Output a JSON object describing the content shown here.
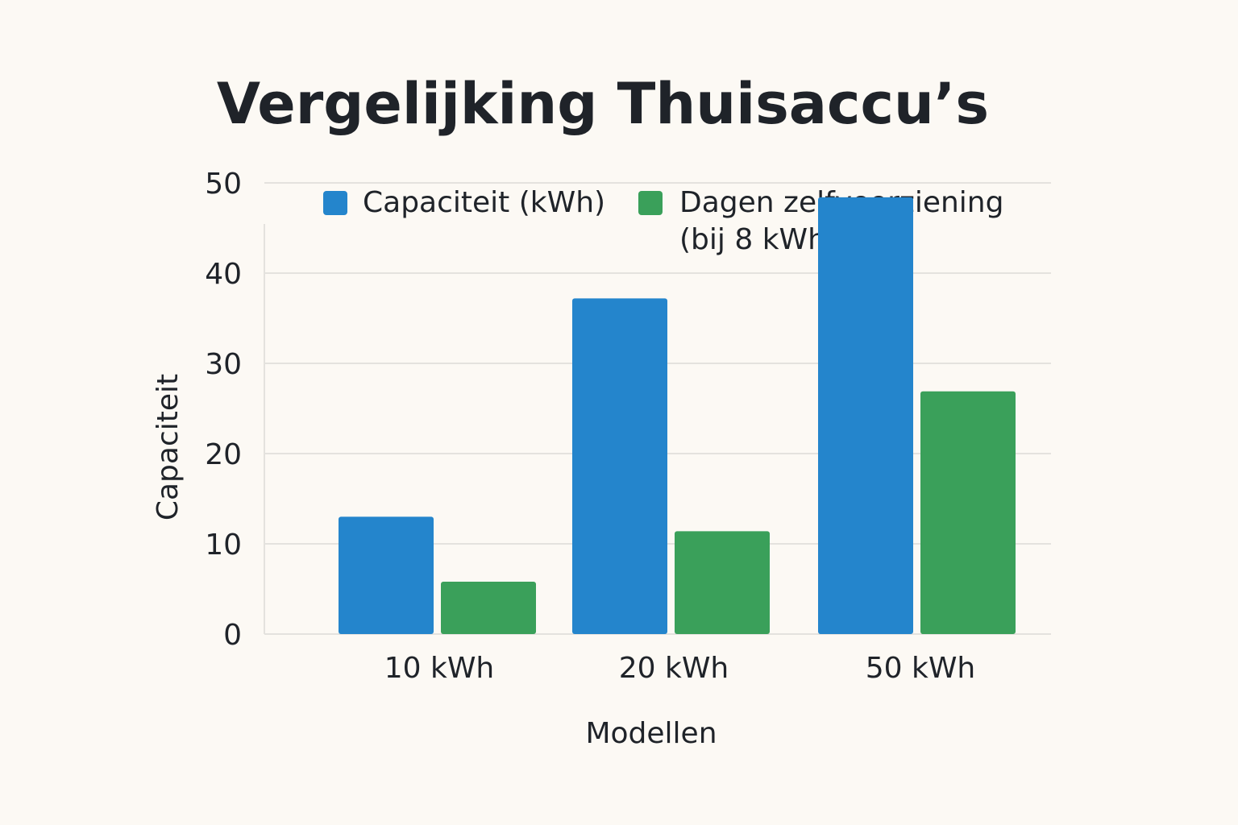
{
  "chart_data": {
    "type": "bar",
    "title": "Vergelijking Thuisaccu’s",
    "xlabel": "Modellen",
    "ylabel": "Capaciteit",
    "categories": [
      "10 kWh",
      "20 kWh",
      "50 kWh"
    ],
    "series": [
      {
        "name": "Capaciteit (kWh)",
        "values": [
          13,
          37.2,
          48.4
        ],
        "color": "#2485cc"
      },
      {
        "name": "Dagen zelfvoorziening (bij 8 kWh/dag)",
        "values": [
          5.8,
          11.4,
          26.9
        ],
        "color": "#3aa05a"
      }
    ],
    "ylim": [
      0,
      55
    ],
    "yticks": [
      0,
      10,
      20,
      30,
      40,
      50
    ],
    "grid": true,
    "legend": "top"
  }
}
